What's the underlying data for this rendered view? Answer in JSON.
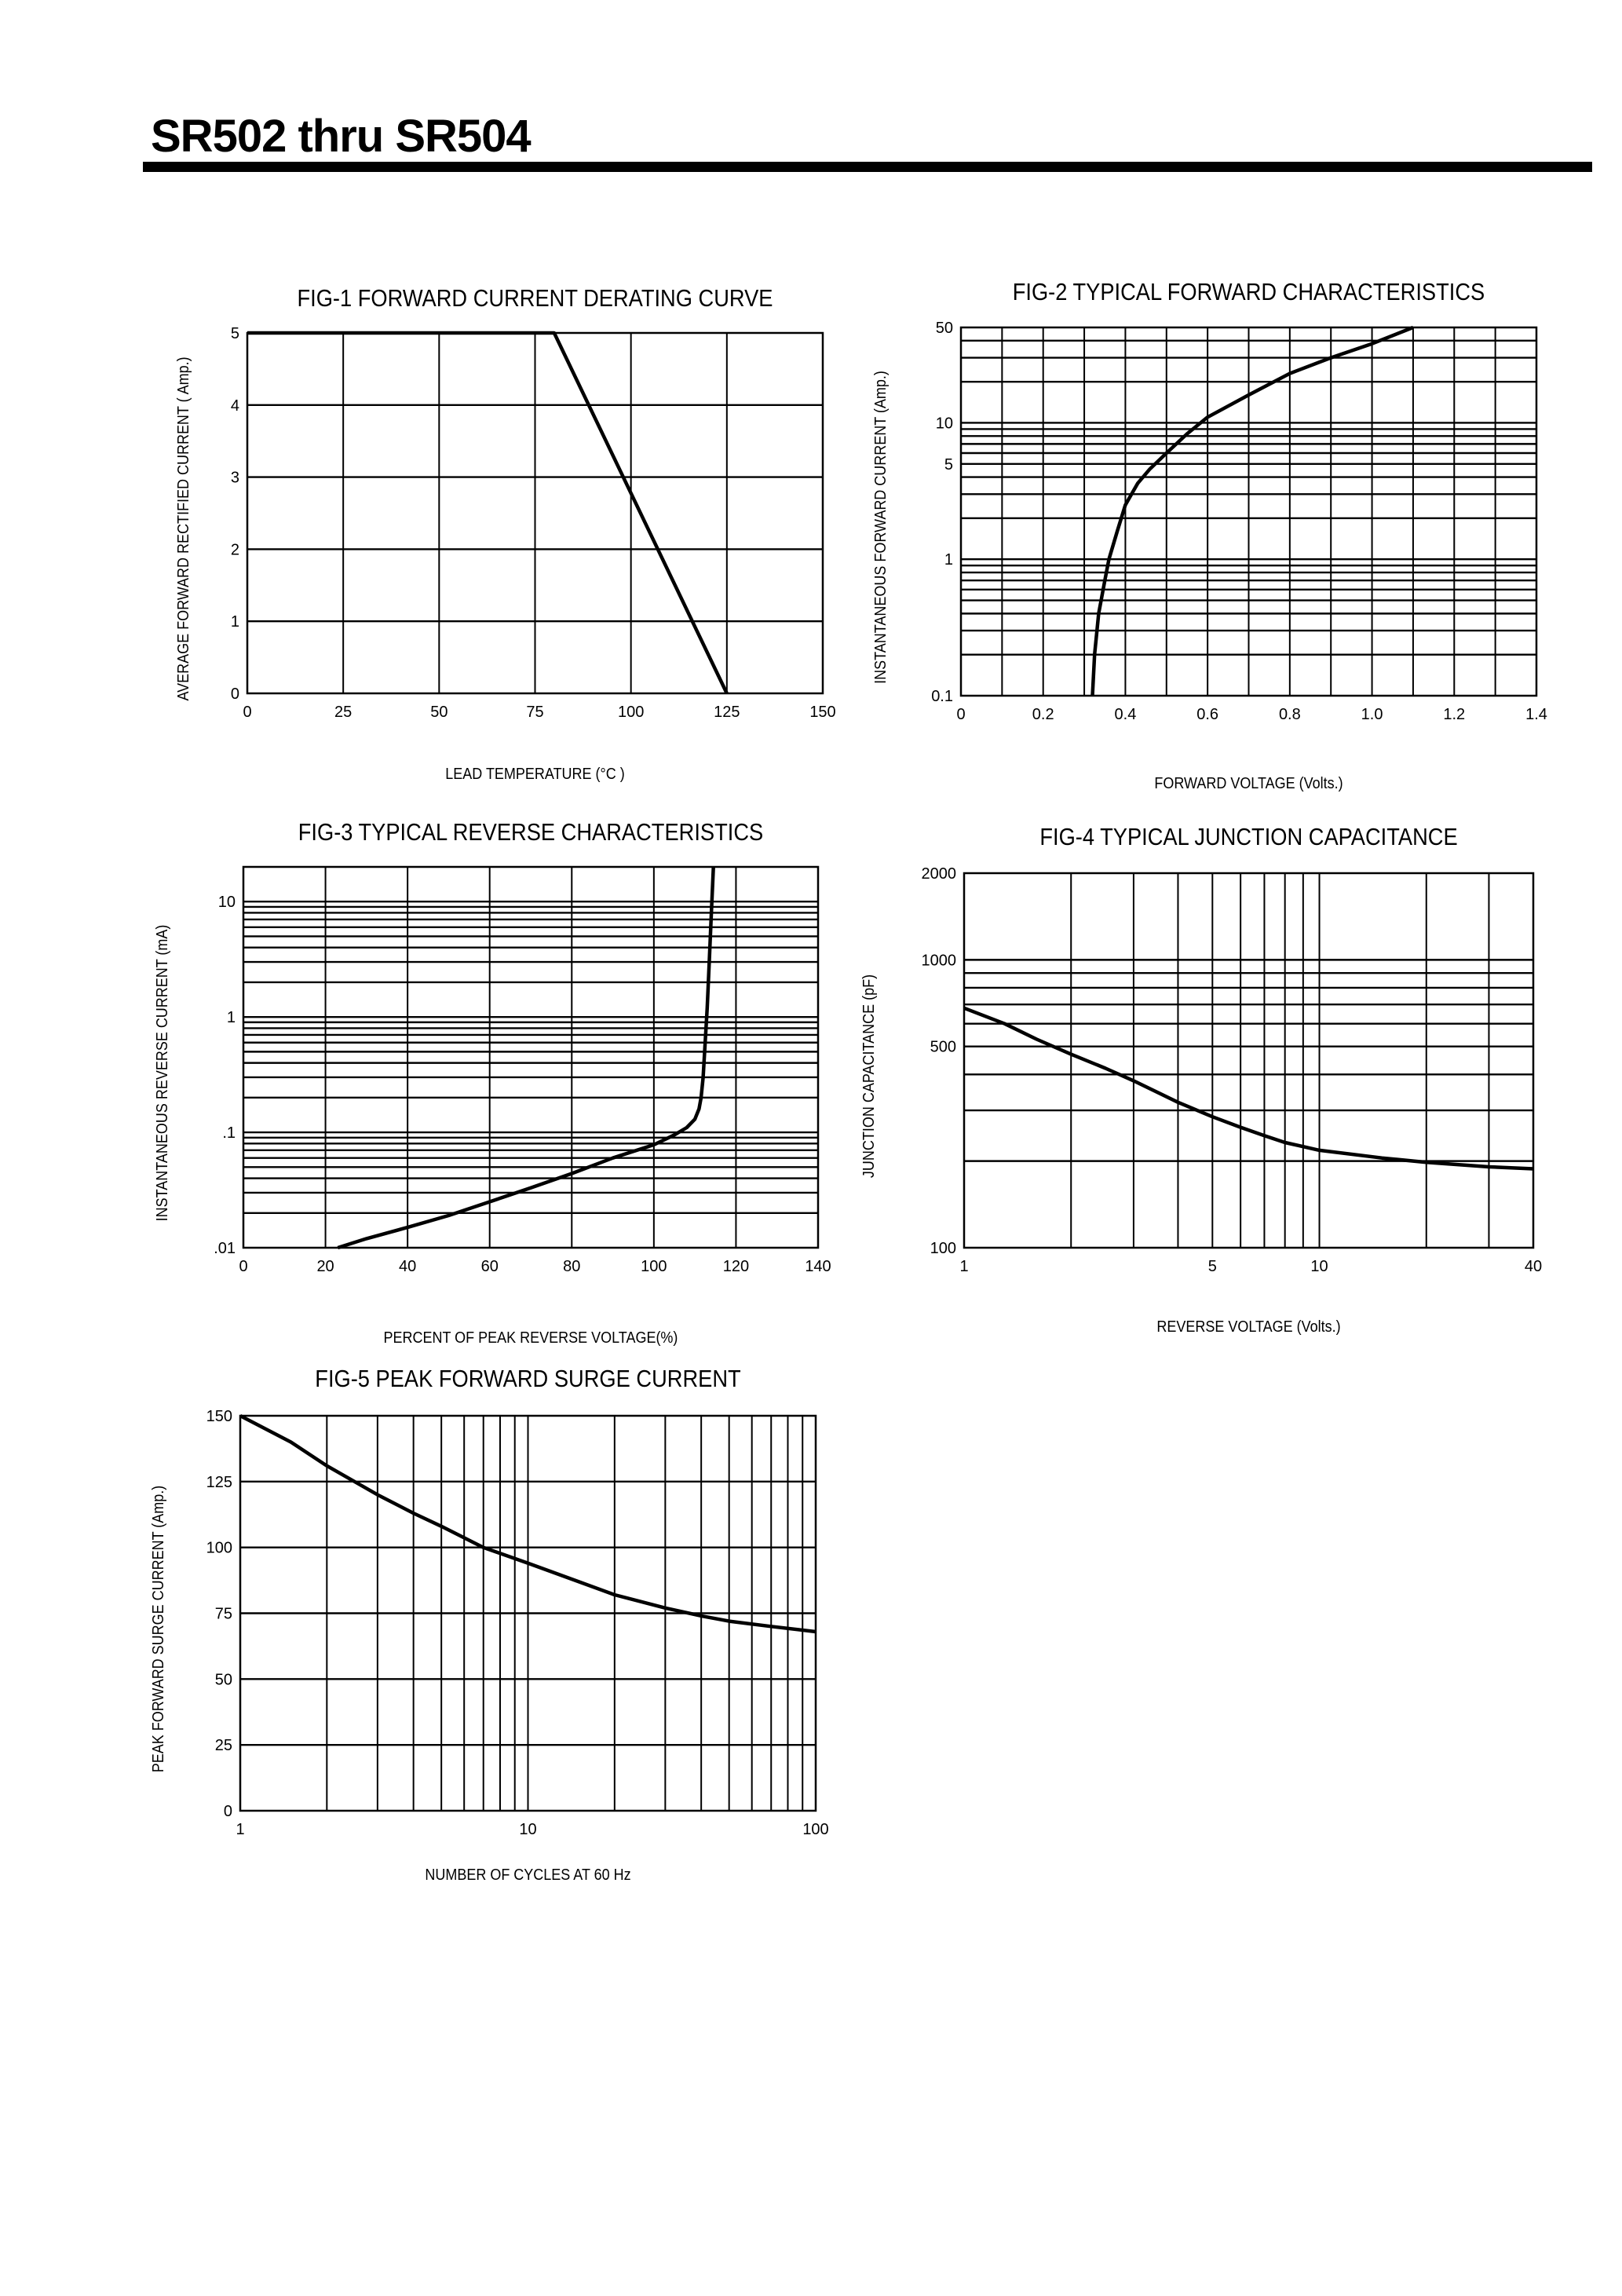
{
  "page": {
    "title": "SR502 thru SR504",
    "ink_color": "#000000"
  },
  "chart_data": [
    {
      "id": "fig1",
      "type": "line",
      "title": "FIG-1 FORWARD CURRENT DERATING CURVE",
      "xlabel": "LEAD TEMPERATURE (°C )",
      "ylabel": "AVERAGE FORWARD RECTIFIED CURRENT ( Amp.)",
      "xscale": "linear",
      "yscale": "linear",
      "xlim": [
        0,
        150
      ],
      "ylim": [
        0,
        5
      ],
      "xticks": [
        0,
        25,
        50,
        75,
        100,
        125,
        150
      ],
      "xtick_labels": [
        "0",
        "25",
        "50",
        "75",
        "100",
        "125",
        "150"
      ],
      "yticks": [
        0,
        1,
        2,
        3,
        4,
        5
      ],
      "ytick_labels": [
        "0",
        "1",
        "2",
        "3",
        "4",
        "5"
      ],
      "xgrid": [
        25,
        50,
        75,
        100,
        125
      ],
      "ygrid": [
        1,
        2,
        3,
        4
      ],
      "grid": true,
      "x": [
        0,
        80,
        125
      ],
      "y": [
        5,
        5,
        0
      ]
    },
    {
      "id": "fig2",
      "type": "line",
      "title": "FIG-2 TYPICAL FORWARD CHARACTERISTICS",
      "xlabel": "FORWARD VOLTAGE (Volts.)",
      "ylabel": "INSTANTANEOUS FORWARD CURRENT (Amp.)",
      "xscale": "linear",
      "yscale": "log",
      "xlim": [
        0,
        1.4
      ],
      "ylim": [
        0.1,
        50
      ],
      "xticks": [
        0,
        0.2,
        0.4,
        0.6,
        0.8,
        1.0,
        1.2,
        1.4
      ],
      "xtick_labels": [
        "0",
        "0.2",
        "0.4",
        "0.6",
        "0.8",
        "1.0",
        "1.2",
        "1.4"
      ],
      "yticks": [
        0.1,
        1,
        5,
        10,
        50
      ],
      "ytick_labels": [
        "0.1",
        "1",
        "5",
        "10",
        "50"
      ],
      "xgrid": [
        0.1,
        0.2,
        0.3,
        0.4,
        0.5,
        0.6,
        0.7,
        0.8,
        0.9,
        1.0,
        1.1,
        1.2,
        1.3
      ],
      "ygrid": [
        0.2,
        0.3,
        0.4,
        0.5,
        0.6,
        0.7,
        0.8,
        0.9,
        1,
        2,
        3,
        4,
        5,
        6,
        7,
        8,
        9,
        10,
        20,
        30,
        40
      ],
      "grid": true,
      "x": [
        0.32,
        0.325,
        0.335,
        0.35,
        0.36,
        0.38,
        0.4,
        0.43,
        0.46,
        0.5,
        0.55,
        0.6,
        0.7,
        0.8,
        0.9,
        1.0,
        1.1
      ],
      "y": [
        0.1,
        0.2,
        0.4,
        0.7,
        1.0,
        1.6,
        2.5,
        3.6,
        4.6,
        6.0,
        8.3,
        11,
        16,
        23,
        30,
        38,
        50
      ]
    },
    {
      "id": "fig3",
      "type": "line",
      "title": "FIG-3 TYPICAL REVERSE CHARACTERISTICS",
      "xlabel": "PERCENT OF PEAK REVERSE VOLTAGE(%)",
      "ylabel": "INSTANTANEOUS REVERSE CURRENT (mA)",
      "xscale": "linear",
      "yscale": "log",
      "xlim": [
        0,
        140
      ],
      "ylim": [
        0.01,
        20
      ],
      "xticks": [
        0,
        20,
        40,
        60,
        80,
        100,
        120,
        140
      ],
      "xtick_labels": [
        "0",
        "20",
        "40",
        "60",
        "80",
        "100",
        "120",
        "140"
      ],
      "yticks": [
        0.01,
        0.1,
        1,
        10
      ],
      "ytick_labels": [
        ".01",
        ".1",
        "1",
        "10"
      ],
      "xgrid": [
        20,
        40,
        60,
        80,
        100,
        120
      ],
      "ygrid": [
        0.02,
        0.03,
        0.04,
        0.05,
        0.06,
        0.07,
        0.08,
        0.09,
        0.1,
        0.2,
        0.3,
        0.4,
        0.5,
        0.6,
        0.7,
        0.8,
        0.9,
        1,
        2,
        3,
        4,
        5,
        6,
        7,
        8,
        9,
        10
      ],
      "grid": true,
      "x": [
        23,
        30,
        40,
        50,
        60,
        70,
        80,
        90,
        100,
        105,
        108,
        110,
        111,
        111.5,
        112,
        112.5,
        113,
        113.5,
        114,
        114.5
      ],
      "y": [
        0.01,
        0.012,
        0.015,
        0.019,
        0.025,
        0.033,
        0.044,
        0.06,
        0.078,
        0.095,
        0.11,
        0.13,
        0.16,
        0.2,
        0.3,
        0.6,
        1.2,
        3,
        8,
        20
      ]
    },
    {
      "id": "fig4",
      "type": "line",
      "title": "FIG-4 TYPICAL JUNCTION CAPACITANCE",
      "xlabel": "REVERSE VOLTAGE (Volts.)",
      "ylabel": "JUNCTION CAPACITANCE (pF)",
      "xscale": "log",
      "yscale": "log",
      "xlim": [
        1,
        40
      ],
      "ylim": [
        100,
        2000
      ],
      "xticks": [
        1,
        5,
        10,
        40
      ],
      "xtick_labels": [
        "1",
        "5",
        "10",
        "40"
      ],
      "yticks": [
        100,
        500,
        1000,
        2000
      ],
      "ytick_labels": [
        "100",
        "500",
        "1000",
        "2000"
      ],
      "xgrid": [
        2,
        3,
        4,
        5,
        6,
        7,
        8,
        9,
        10,
        20,
        30
      ],
      "ygrid": [
        200,
        300,
        400,
        500,
        600,
        700,
        800,
        900,
        1000
      ],
      "grid": true,
      "x": [
        1,
        1.3,
        1.6,
        2,
        2.5,
        3,
        4,
        5,
        6,
        7,
        8,
        10,
        15,
        20,
        30,
        40
      ],
      "y": [
        680,
        600,
        530,
        470,
        420,
        380,
        320,
        285,
        262,
        245,
        232,
        218,
        205,
        198,
        191,
        188
      ]
    },
    {
      "id": "fig5",
      "type": "line",
      "title": "FIG-5 PEAK FORWARD SURGE CURRENT",
      "xlabel": "NUMBER OF CYCLES AT 60 Hz",
      "ylabel": "PEAK FORWARD SURGE CURRENT (Amp.)",
      "xscale": "log",
      "yscale": "linear",
      "xlim": [
        1,
        100
      ],
      "ylim": [
        0,
        150
      ],
      "xticks": [
        1,
        10,
        100
      ],
      "xtick_labels": [
        "1",
        "10",
        "100"
      ],
      "yticks": [
        0,
        25,
        50,
        75,
        100,
        125,
        150
      ],
      "ytick_labels": [
        "0",
        "25",
        "50",
        "75",
        "100",
        "125",
        "150"
      ],
      "xgrid": [
        2,
        3,
        4,
        5,
        6,
        7,
        8,
        9,
        10,
        20,
        30,
        40,
        50,
        60,
        70,
        80,
        90
      ],
      "ygrid": [
        25,
        50,
        75,
        100,
        125
      ],
      "grid": true,
      "x": [
        1,
        1.5,
        2,
        3,
        4,
        5,
        7,
        10,
        15,
        20,
        30,
        40,
        50,
        70,
        100
      ],
      "y": [
        150,
        140,
        131,
        120,
        113,
        108,
        100,
        94,
        87,
        82,
        77,
        74,
        72,
        70,
        68
      ]
    }
  ]
}
